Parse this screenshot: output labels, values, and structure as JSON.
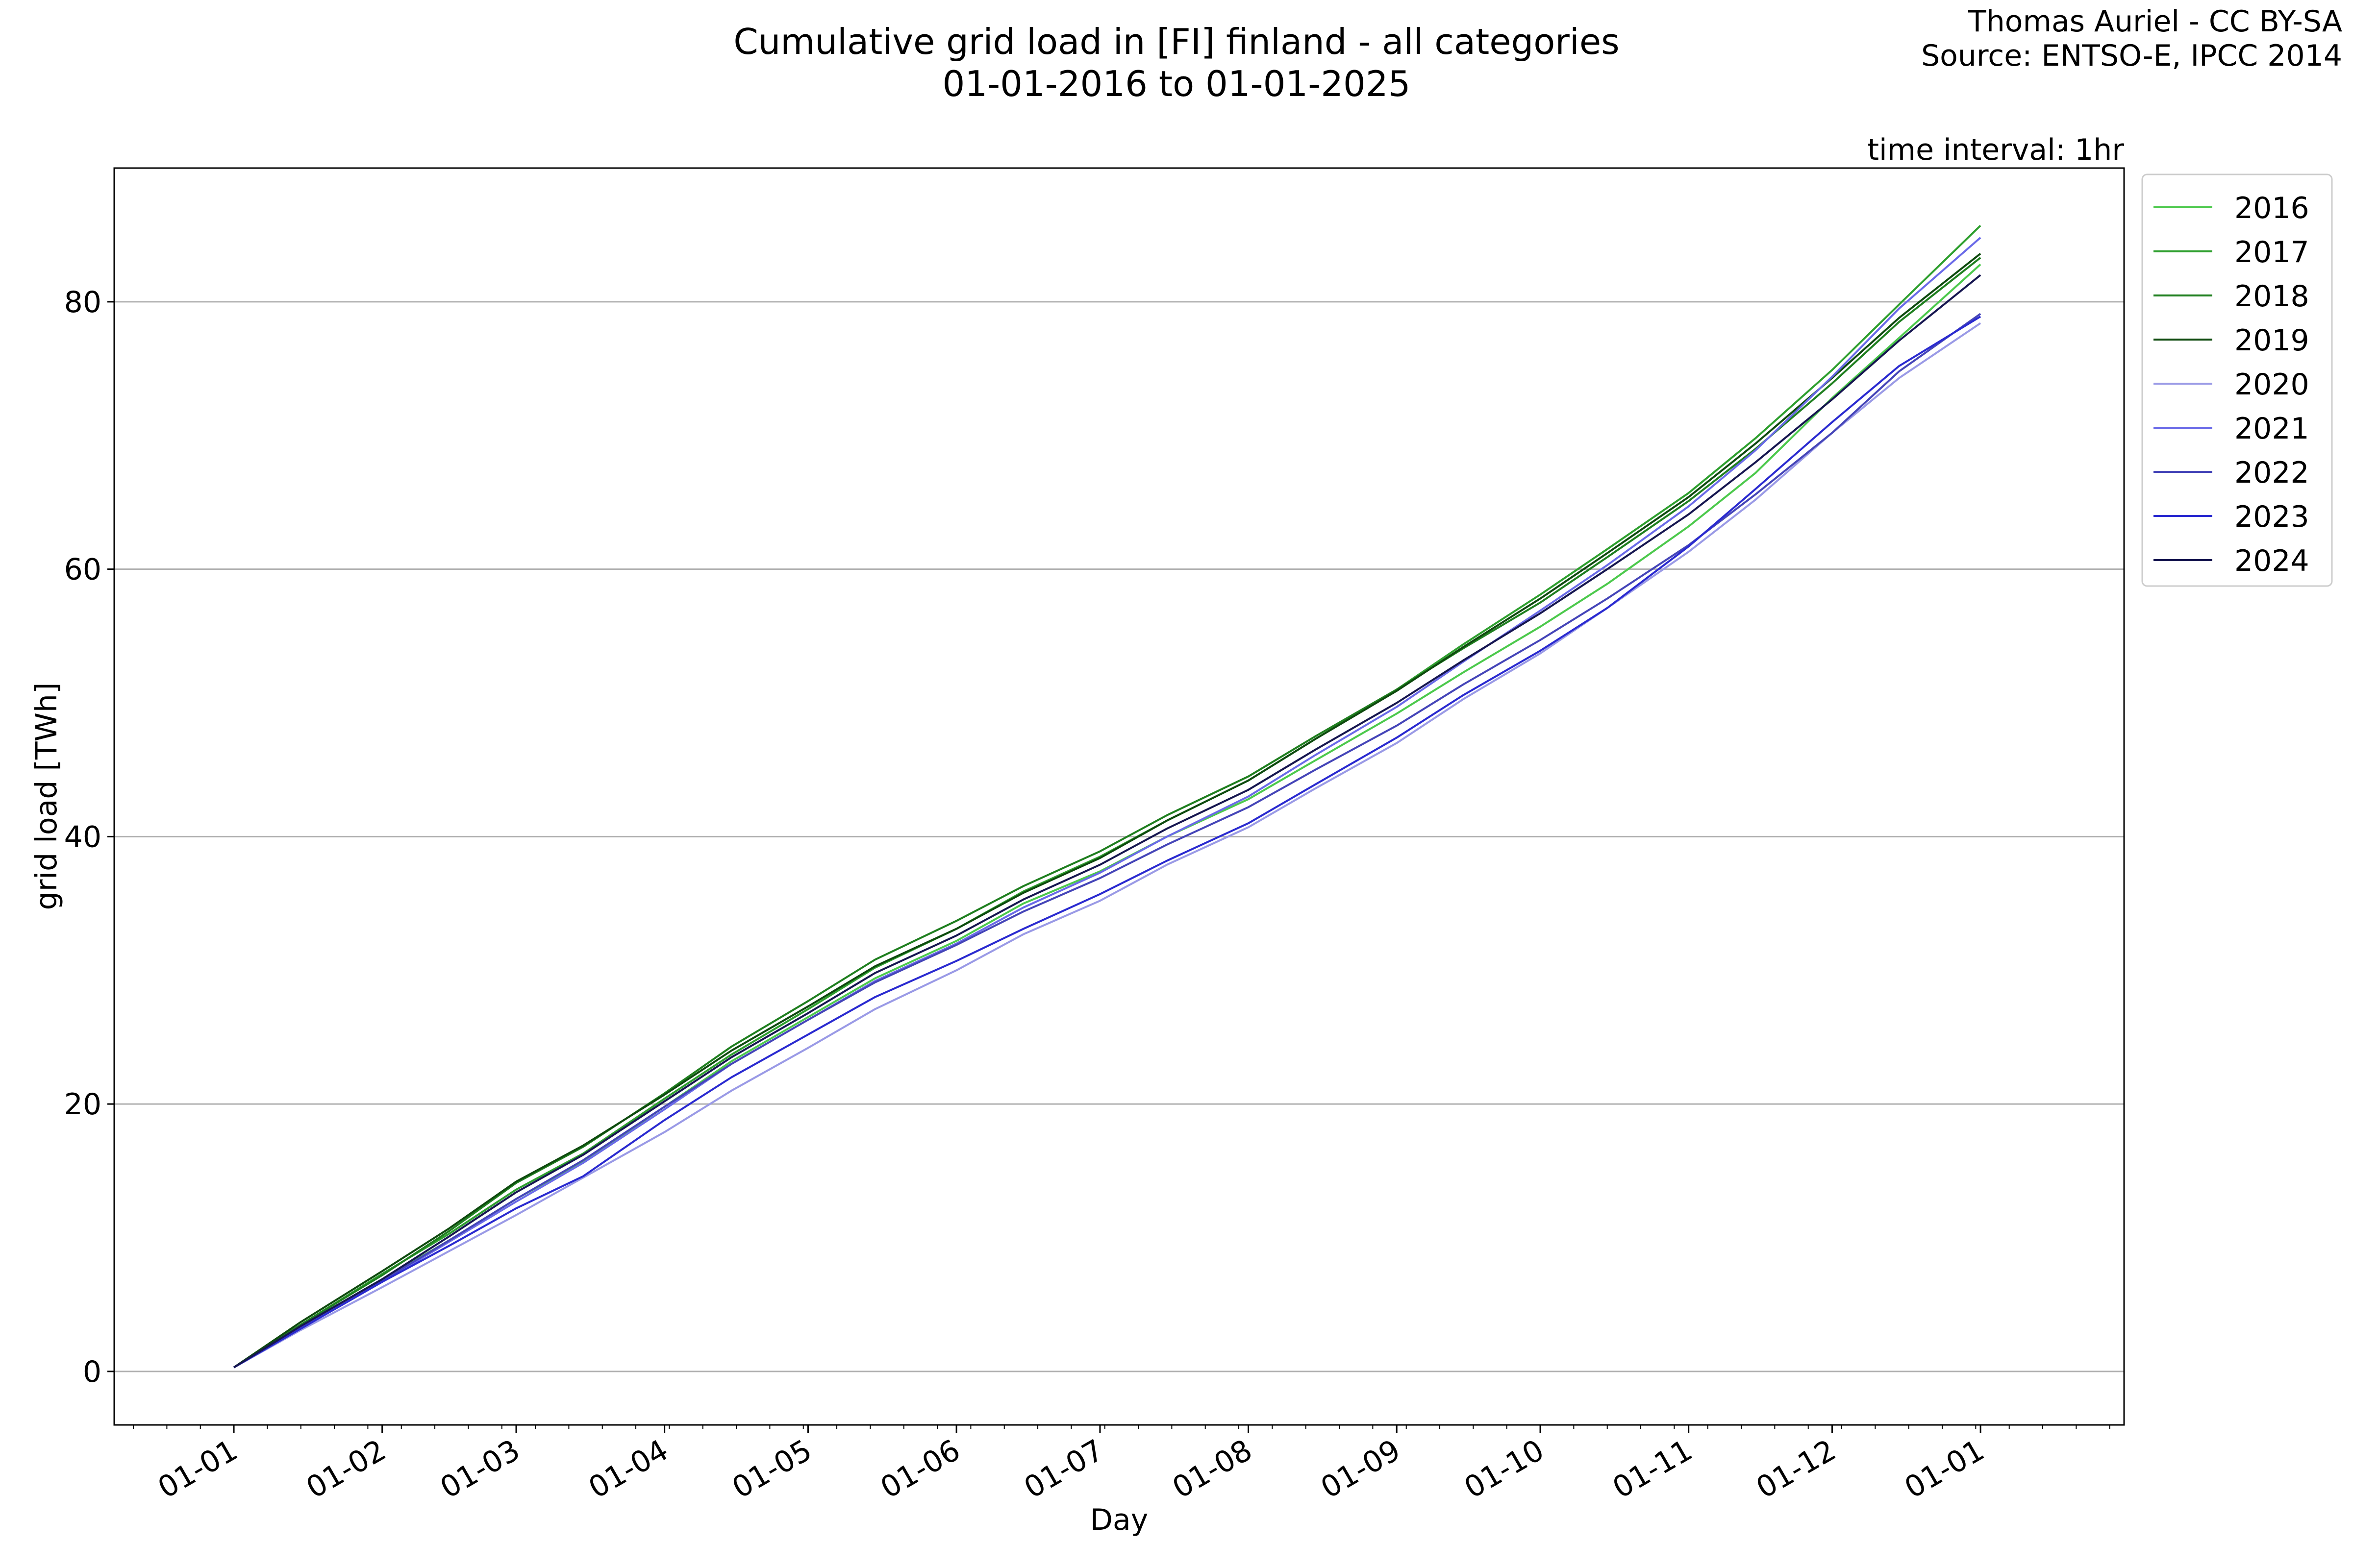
{
  "chart_data": {
    "type": "line",
    "title": "Cumulative grid load in [FI] finland - all categories",
    "subtitle": "01-01-2016 to 01-01-2025",
    "credit": "Thomas Auriel - CC BY-SA",
    "source": "Source: ENTSO-E, IPCC 2014",
    "annotation": "time interval: 1hr",
    "xlabel": "Day",
    "ylabel": "grid load [TWh]",
    "x_tick_labels": [
      "01-01",
      "01-02",
      "01-03",
      "01-04",
      "01-05",
      "01-06",
      "01-07",
      "01-08",
      "01-09",
      "01-10",
      "01-11",
      "01-12",
      "01-01"
    ],
    "y_ticks": [
      0,
      20,
      40,
      60,
      80
    ],
    "xlim": [
      "12-07",
      "01-31"
    ],
    "ylim": [
      -4,
      90
    ],
    "grid": "horizontal",
    "legend_position": "outside top-right",
    "x": [
      "01-01",
      "01-15",
      "02-01",
      "02-15",
      "03-01",
      "03-15",
      "04-01",
      "04-15",
      "05-01",
      "05-15",
      "06-01",
      "06-15",
      "07-01",
      "07-15",
      "08-01",
      "08-15",
      "09-01",
      "09-15",
      "10-01",
      "10-15",
      "11-01",
      "11-15",
      "12-01",
      "12-15",
      "01-01"
    ],
    "series": [
      {
        "name": "2016",
        "color": "#4cc94c",
        "values": [
          0.3,
          3.4,
          6.9,
          9.8,
          12.9,
          15.7,
          19.8,
          23.2,
          26.5,
          29.4,
          32.2,
          35.0,
          37.4,
          40.0,
          42.8,
          45.7,
          49.2,
          52.3,
          55.7,
          58.9,
          63.2,
          67.2,
          72.8,
          77.3,
          82.8
        ]
      },
      {
        "name": "2017",
        "color": "#2e9f2e",
        "values": [
          0.3,
          3.5,
          7.3,
          10.3,
          13.6,
          16.3,
          20.4,
          23.7,
          27.1,
          30.2,
          33.1,
          35.9,
          38.5,
          41.2,
          44.2,
          47.3,
          51.0,
          54.4,
          58.1,
          61.5,
          65.7,
          69.8,
          74.9,
          79.8,
          85.7
        ]
      },
      {
        "name": "2018",
        "color": "#1f7f1f",
        "values": [
          0.3,
          3.5,
          7.2,
          10.5,
          14.1,
          16.8,
          20.8,
          24.3,
          27.7,
          30.8,
          33.7,
          36.3,
          38.9,
          41.6,
          44.5,
          47.5,
          51.0,
          54.1,
          57.5,
          60.9,
          65.1,
          69.0,
          73.9,
          78.5,
          83.3
        ]
      },
      {
        "name": "2019",
        "color": "#0e4a0e",
        "values": [
          0.3,
          3.7,
          7.5,
          10.7,
          14.2,
          16.9,
          20.7,
          24.0,
          27.3,
          30.3,
          33.1,
          35.8,
          38.4,
          41.2,
          44.2,
          47.3,
          50.9,
          54.2,
          57.8,
          61.2,
          65.4,
          69.4,
          74.3,
          78.8,
          83.6
        ]
      },
      {
        "name": "2020",
        "color": "#9a9ae6",
        "values": [
          0.3,
          3.1,
          6.3,
          9.0,
          11.7,
          14.5,
          17.9,
          21.0,
          24.2,
          27.1,
          30.0,
          32.7,
          35.2,
          37.9,
          40.7,
          43.6,
          47.0,
          50.3,
          53.7,
          57.1,
          61.3,
          65.2,
          70.2,
          74.3,
          78.4
        ]
      },
      {
        "name": "2021",
        "color": "#6a6ae8",
        "values": [
          0.3,
          3.3,
          6.7,
          9.7,
          12.7,
          15.6,
          19.6,
          23.0,
          26.3,
          29.2,
          32.0,
          34.7,
          37.3,
          40.0,
          43.0,
          46.1,
          49.7,
          53.1,
          56.9,
          60.3,
          64.7,
          68.9,
          74.4,
          79.5,
          84.8
        ]
      },
      {
        "name": "2022",
        "color": "#4545b8",
        "values": [
          0.3,
          3.3,
          6.8,
          9.8,
          12.9,
          15.8,
          19.8,
          23.0,
          26.3,
          29.1,
          31.9,
          34.4,
          36.9,
          39.4,
          42.2,
          45.0,
          48.3,
          51.4,
          54.7,
          57.8,
          61.8,
          65.6,
          70.2,
          74.8,
          79.1
        ]
      },
      {
        "name": "2023",
        "color": "#2a2ad0",
        "values": [
          0.3,
          3.2,
          6.7,
          9.4,
          12.2,
          14.6,
          18.8,
          22.0,
          25.2,
          28.0,
          30.7,
          33.1,
          35.7,
          38.2,
          41.0,
          43.9,
          47.4,
          50.6,
          53.9,
          57.1,
          61.7,
          66.0,
          71.0,
          75.2,
          78.9
        ]
      },
      {
        "name": "2024",
        "color": "#161650",
        "values": [
          0.3,
          3.4,
          6.9,
          10.1,
          13.4,
          16.2,
          20.2,
          23.5,
          26.8,
          29.8,
          32.6,
          35.3,
          37.9,
          40.6,
          43.5,
          46.5,
          50.0,
          53.2,
          56.7,
          60.0,
          64.1,
          68.0,
          72.7,
          77.1,
          82.0
        ]
      }
    ]
  }
}
